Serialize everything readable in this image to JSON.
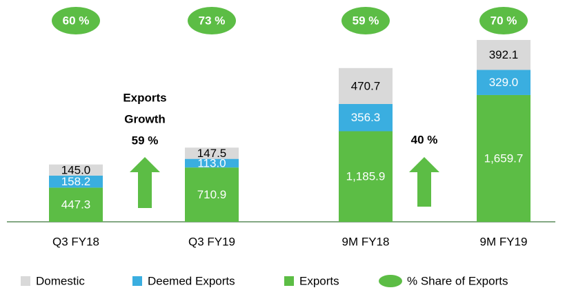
{
  "chart_data": {
    "type": "bar",
    "stacked": true,
    "categories": [
      "Q3 FY18",
      "Q3 FY19",
      "9M FY18",
      "9M FY19"
    ],
    "series": [
      {
        "name": "Domestic",
        "color": "#d9d9d9",
        "label_color": "#000000",
        "values": [
          145.0,
          147.5,
          470.7,
          392.1
        ],
        "value_labels": [
          "145.0",
          "147.5",
          "470.7",
          "392.1"
        ]
      },
      {
        "name": "Deemed Exports",
        "color": "#3aaee0",
        "label_color": "#ffffff",
        "values": [
          158.2,
          113.0,
          356.3,
          329.0
        ],
        "value_labels": [
          "158.2",
          "113.0",
          "356.3",
          "329.0"
        ]
      },
      {
        "name": "Exports",
        "color": "#5cbd45",
        "label_color": "#ffffff",
        "values": [
          447.3,
          710.9,
          1185.9,
          1659.7
        ],
        "value_labels": [
          "447.3",
          "710.9",
          "1,185.9",
          "1,659.7"
        ]
      }
    ],
    "share": {
      "name": "% Share of Exports",
      "color": "#5cbd45",
      "values": [
        60,
        73,
        59,
        70
      ],
      "value_labels": [
        "60 %",
        "73 %",
        "59 %",
        "70 %"
      ]
    },
    "annotations": [
      {
        "lines": [
          "Exports",
          "Growth",
          "59 %"
        ]
      },
      {
        "lines": [
          "40 %"
        ]
      }
    ]
  }
}
